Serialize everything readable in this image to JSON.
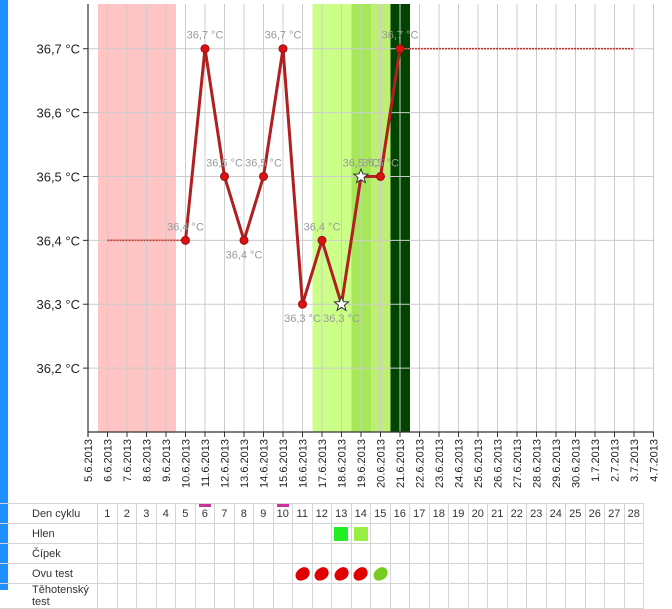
{
  "chart_data": {
    "type": "line",
    "dates": [
      "5.6.2013",
      "6.6.2013",
      "7.6.2013",
      "8.6.2013",
      "9.6.2013",
      "10.6.2013",
      "11.6.2013",
      "12.6.2013",
      "13.6.2013",
      "14.6.2013",
      "15.6.2013",
      "16.6.2013",
      "17.6.2013",
      "18.6.2013",
      "19.6.2013",
      "20.6.2013",
      "21.6.2013",
      "22.6.2013",
      "23.6.2013",
      "24.6.2013",
      "25.6.2013",
      "26.6.2013",
      "27.6.2013",
      "28.6.2013",
      "29.6.2013",
      "30.6.2013",
      "1.7.2013",
      "2.7.2013",
      "3.7.2013",
      "4.7.2013"
    ],
    "ylim": [
      36.1,
      36.77
    ],
    "y_ticks": [
      {
        "value": 36.2,
        "label": "36,2 °C"
      },
      {
        "value": 36.3,
        "label": "36,3 °C"
      },
      {
        "value": 36.4,
        "label": "36,4 °C"
      },
      {
        "value": 36.5,
        "label": "36,5 °C"
      },
      {
        "value": 36.6,
        "label": "36,6 °C"
      },
      {
        "value": 36.7,
        "label": "36,7 °C"
      }
    ],
    "grid": true,
    "series": [
      {
        "color": "#b02020",
        "points": [
          {
            "date": "10.6.2013",
            "value": 36.4,
            "label": "36,4 °C",
            "marker": "dot"
          },
          {
            "date": "11.6.2013",
            "value": 36.7,
            "label": "36,7 °C",
            "marker": "dot"
          },
          {
            "date": "12.6.2013",
            "value": 36.5,
            "label": "36,5 °C",
            "marker": "dot"
          },
          {
            "date": "13.6.2013",
            "value": 36.4,
            "label": "36,4 °C",
            "marker": "dot"
          },
          {
            "date": "14.6.2013",
            "value": 36.5,
            "label": "36,5 °C",
            "marker": "dot"
          },
          {
            "date": "15.6.2013",
            "value": 36.7,
            "label": "36,7 °C",
            "marker": "dot"
          },
          {
            "date": "16.6.2013",
            "value": 36.3,
            "label": "36,3 °C",
            "marker": "dot"
          },
          {
            "date": "17.6.2013",
            "value": 36.4,
            "label": "36,4 °C",
            "marker": "dot"
          },
          {
            "date": "18.6.2013",
            "value": 36.3,
            "label": "36,3 °C",
            "marker": "star"
          },
          {
            "date": "19.6.2013",
            "value": 36.5,
            "label": "36,5 °C",
            "marker": "star"
          },
          {
            "date": "20.6.2013",
            "value": 36.5,
            "label": "36,5 °C",
            "marker": "dot"
          },
          {
            "date": "21.6.2013",
            "value": 36.7,
            "label": "36,7 °C",
            "marker": "dot"
          }
        ]
      }
    ],
    "reference_lines": [
      {
        "from": "6.6.2013",
        "to": "10.6.2013",
        "value": 36.4,
        "color": "#c0392b"
      },
      {
        "from": "21.6.2013",
        "to": "3.7.2013",
        "value": 36.7,
        "color": "#c0392b"
      }
    ],
    "bands": [
      {
        "from": "5.6.2013",
        "to": "9.6.2013",
        "color": "#ffc4c4"
      },
      {
        "from": "16.6.2013",
        "to": "19.6.2013",
        "color": "#ccff88"
      },
      {
        "from": "18.6.2013",
        "to": "20.6.2013",
        "color": "#a6e85a"
      },
      {
        "from": "19.6.2013",
        "to": "20.6.2013",
        "color": "#bfee74"
      },
      {
        "from": "20.6.2013",
        "to": "21.6.2013",
        "color": "#004400"
      }
    ]
  },
  "table": {
    "rows": [
      {
        "label": "Den cyklu",
        "cells": [
          "1",
          "2",
          "3",
          "4",
          "5",
          "6",
          "7",
          "8",
          "9",
          "10",
          "11",
          "12",
          "13",
          "14",
          "15",
          "16",
          "17",
          "18",
          "19",
          "20",
          "21",
          "22",
          "23",
          "24",
          "25",
          "26",
          "27",
          "28"
        ],
        "highlight_days": [
          6,
          10
        ]
      },
      {
        "label": "Hlen",
        "marks": [
          {
            "day": 13,
            "color": "#22ee22"
          },
          {
            "day": 14,
            "color": "#99ee44"
          }
        ]
      },
      {
        "label": "Čípek",
        "marks": []
      },
      {
        "label": "Ovu test",
        "marks": [
          {
            "day": 11,
            "color": "#e00000"
          },
          {
            "day": 12,
            "color": "#e00000"
          },
          {
            "day": 13,
            "color": "#e00000"
          },
          {
            "day": 14,
            "color": "#e00000"
          },
          {
            "day": 15,
            "color": "#77cc22"
          }
        ]
      },
      {
        "label": "Těhotenský test",
        "marks": []
      }
    ]
  }
}
